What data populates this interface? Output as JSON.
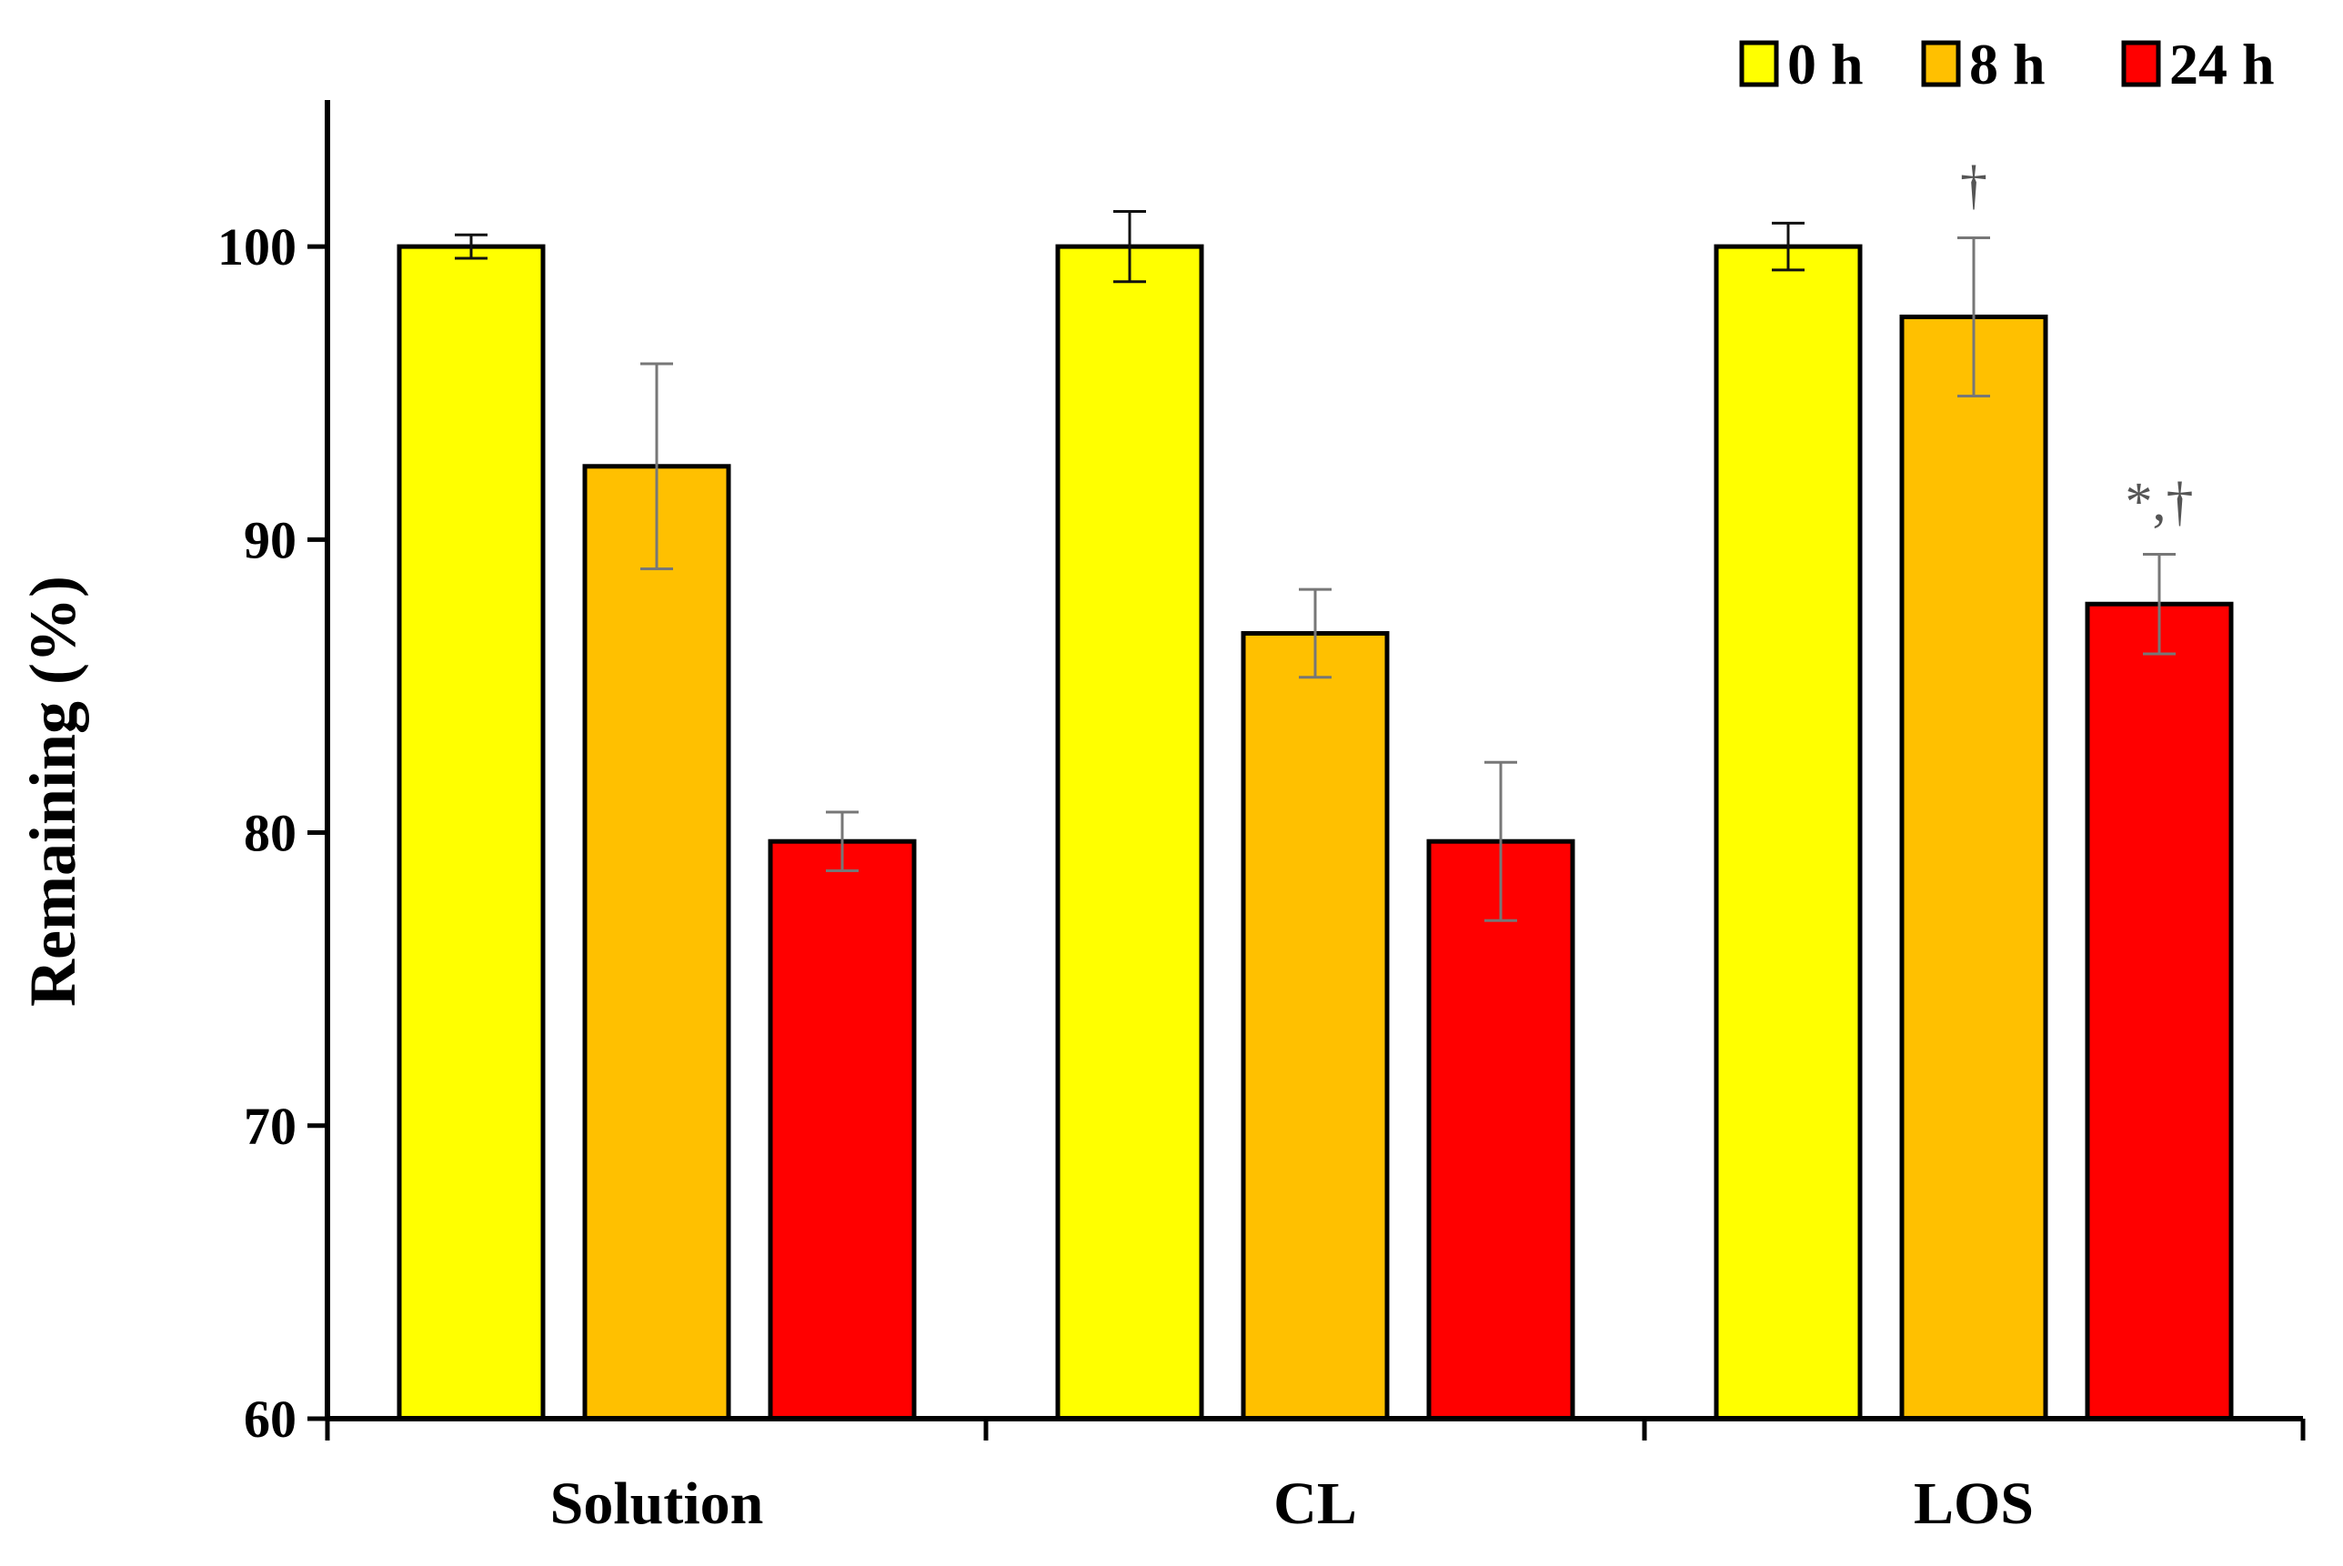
{
  "chart_data": {
    "type": "bar",
    "title": "",
    "xlabel": "",
    "ylabel": "Remaining (%)",
    "ylim": [
      60,
      105
    ],
    "yticks": [
      60,
      70,
      80,
      90,
      100
    ],
    "grid": false,
    "legend_position": "top-right",
    "categories": [
      "Solution",
      "CL",
      "LOS"
    ],
    "series": [
      {
        "name": "0 h",
        "color": "#ffff00",
        "values": [
          100,
          100,
          100
        ],
        "errors": [
          0.4,
          1.2,
          0.8
        ],
        "annotations": [
          "",
          "",
          ""
        ]
      },
      {
        "name": "8 h",
        "color": "#ffc000",
        "values": [
          92.5,
          86.8,
          97.6
        ],
        "errors": [
          3.5,
          1.5,
          2.7
        ],
        "annotations": [
          "",
          "",
          "†"
        ]
      },
      {
        "name": "24 h",
        "color": "#ff0000",
        "values": [
          79.7,
          79.7,
          87.8
        ],
        "errors": [
          1.0,
          2.7,
          1.7
        ],
        "annotations": [
          "",
          "",
          "*,†"
        ]
      }
    ]
  }
}
